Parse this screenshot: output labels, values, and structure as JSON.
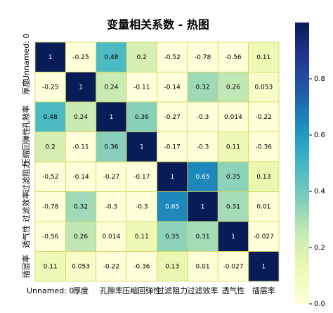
{
  "chart_data": {
    "type": "heatmap",
    "title": "变量相关系数 - 热图",
    "x_categories": [
      "Unnamed: 0",
      "厚度",
      "孔隙率",
      "压缩回弹性",
      "过滤阻力",
      "过滤效率",
      "透气性",
      "插层率"
    ],
    "y_categories": [
      "Unnamed: 0",
      "厚度",
      "孔隙率",
      "压缩回弹性",
      "过滤阻力",
      "过滤效率",
      "透气性",
      "插层率"
    ],
    "values": [
      [
        1,
        -0.25,
        0.48,
        0.2,
        -0.52,
        -0.78,
        -0.56,
        0.11
      ],
      [
        -0.25,
        1,
        0.24,
        -0.11,
        -0.14,
        0.32,
        0.26,
        0.053
      ],
      [
        0.48,
        0.24,
        1,
        0.36,
        -0.27,
        -0.3,
        0.014,
        -0.22
      ],
      [
        0.2,
        -0.11,
        0.36,
        1,
        -0.17,
        -0.3,
        0.11,
        -0.36
      ],
      [
        -0.52,
        -0.14,
        -0.27,
        -0.17,
        1,
        0.65,
        0.35,
        0.13
      ],
      [
        -0.78,
        0.32,
        -0.3,
        -0.3,
        0.65,
        1,
        0.31,
        0.01
      ],
      [
        -0.56,
        0.26,
        0.014,
        0.11,
        0.35,
        0.31,
        1,
        -0.027
      ],
      [
        0.11,
        0.053,
        -0.22,
        -0.36,
        0.13,
        0.01,
        -0.027,
        1
      ]
    ],
    "colormap": "YlGnBu",
    "clim": [
      0,
      1
    ],
    "colorbar_ticks": [
      {
        "value": 0,
        "label": "0.0"
      },
      0.2,
      0.4,
      0.6,
      0.8
    ]
  }
}
